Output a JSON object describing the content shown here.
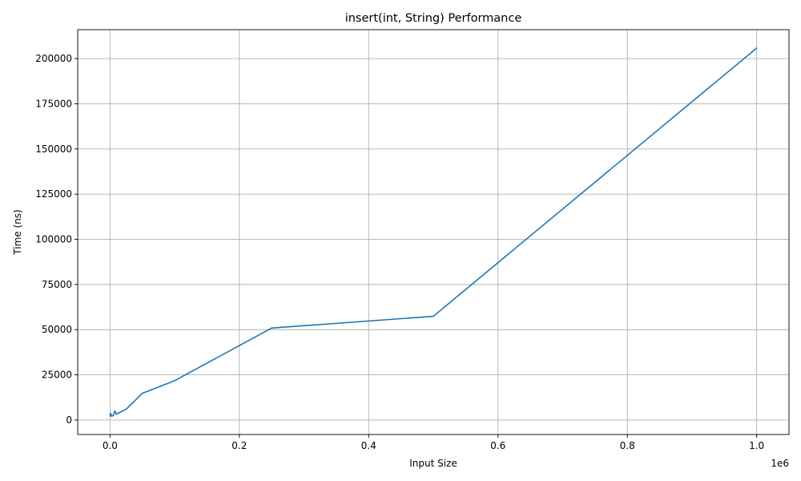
{
  "chart_data": {
    "type": "line",
    "title": "insert(int, String) Performance",
    "xlabel": "Input Size",
    "ylabel": "Time (ns)",
    "x_offset_label": "1e6",
    "xlim": [
      -50000,
      1050000
    ],
    "ylim": [
      -8000,
      216000
    ],
    "grid": true,
    "x_ticks": [
      0,
      200000,
      400000,
      600000,
      800000,
      1000000
    ],
    "x_tick_labels": [
      "0.0",
      "0.2",
      "0.4",
      "0.6",
      "0.8",
      "1.0"
    ],
    "y_ticks": [
      0,
      25000,
      50000,
      75000,
      100000,
      125000,
      150000,
      175000,
      200000
    ],
    "y_tick_labels": [
      "0",
      "25000",
      "50000",
      "75000",
      "100000",
      "125000",
      "150000",
      "175000",
      "200000"
    ],
    "series": [
      {
        "name": "insert(int, String)",
        "color": "#1f77b4",
        "x": [
          100,
          500,
          1000,
          2500,
          5000,
          7500,
          10000,
          25000,
          50000,
          100000,
          250000,
          500000,
          1000000
        ],
        "y": [
          3000,
          2400,
          3600,
          2100,
          2500,
          5000,
          3300,
          6000,
          14800,
          21800,
          50900,
          57400,
          205800
        ]
      }
    ]
  }
}
